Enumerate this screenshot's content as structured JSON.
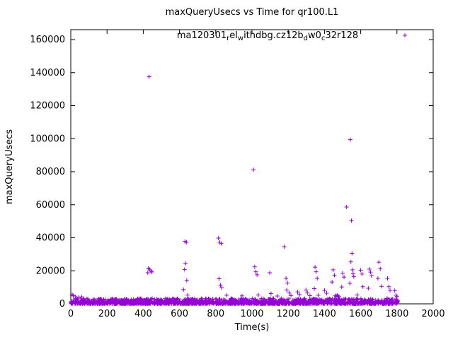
{
  "chart_data": {
    "type": "scatter",
    "title": "maxQueryUsecs vs Time for qr100.L1",
    "xlabel": "Time(s)",
    "ylabel": "maxQueryUsecs",
    "xlim": [
      0,
      2000
    ],
    "ylim": [
      0,
      166000
    ],
    "xticks": [
      0,
      200,
      400,
      600,
      800,
      1000,
      1200,
      1400,
      1600,
      1800,
      2000
    ],
    "yticks": [
      0,
      20000,
      40000,
      60000,
      80000,
      100000,
      120000,
      140000,
      160000
    ],
    "grid": false,
    "marker": "plus",
    "color": "#9400D3",
    "legend": {
      "position": "top-center-inside",
      "label_plain": "ma120301_rel_withdbg.cz12b_dw0_c32r128",
      "segments": [
        {
          "t": "ma120301",
          "sub": false
        },
        {
          "t": "r",
          "sub": true
        },
        {
          "t": "el",
          "sub": false
        },
        {
          "t": "w",
          "sub": true
        },
        {
          "t": "ithdbg.cz12b",
          "sub": false
        },
        {
          "t": "d",
          "sub": true
        },
        {
          "t": "w0",
          "sub": false
        },
        {
          "t": "c",
          "sub": true
        },
        {
          "t": "32r128",
          "sub": false
        }
      ]
    },
    "outliers": [
      [
        8,
        5600
      ],
      [
        14,
        4900
      ],
      [
        26,
        4300
      ],
      [
        45,
        3900
      ],
      [
        60,
        4200
      ],
      [
        432,
        137500
      ],
      [
        425,
        18800
      ],
      [
        428,
        21500
      ],
      [
        436,
        20900
      ],
      [
        442,
        19800
      ],
      [
        448,
        19300
      ],
      [
        622,
        8600
      ],
      [
        628,
        20800
      ],
      [
        630,
        37800
      ],
      [
        633,
        24500
      ],
      [
        638,
        37200
      ],
      [
        640,
        14200
      ],
      [
        645,
        5300
      ],
      [
        815,
        39800
      ],
      [
        818,
        15200
      ],
      [
        822,
        37300
      ],
      [
        826,
        11400
      ],
      [
        830,
        36500
      ],
      [
        833,
        9800
      ],
      [
        860,
        5200
      ],
      [
        945,
        4800
      ],
      [
        1008,
        81200
      ],
      [
        1015,
        22400
      ],
      [
        1022,
        19400
      ],
      [
        1028,
        17600
      ],
      [
        1035,
        5400
      ],
      [
        1098,
        18800
      ],
      [
        1105,
        6200
      ],
      [
        1140,
        4700
      ],
      [
        1178,
        34600
      ],
      [
        1188,
        15400
      ],
      [
        1192,
        8400
      ],
      [
        1196,
        12600
      ],
      [
        1205,
        6600
      ],
      [
        1215,
        5000
      ],
      [
        1252,
        7200
      ],
      [
        1262,
        5600
      ],
      [
        1298,
        8400
      ],
      [
        1306,
        6600
      ],
      [
        1320,
        4900
      ],
      [
        1344,
        9200
      ],
      [
        1348,
        22200
      ],
      [
        1354,
        19400
      ],
      [
        1360,
        15400
      ],
      [
        1366,
        5200
      ],
      [
        1400,
        8200
      ],
      [
        1412,
        6400
      ],
      [
        1442,
        13200
      ],
      [
        1448,
        20600
      ],
      [
        1455,
        17400
      ],
      [
        1460,
        5000
      ],
      [
        1465,
        4600
      ],
      [
        1470,
        5200
      ],
      [
        1475,
        4800
      ],
      [
        1480,
        4300
      ],
      [
        1495,
        10200
      ],
      [
        1500,
        18600
      ],
      [
        1508,
        16200
      ],
      [
        1522,
        58600
      ],
      [
        1540,
        12400
      ],
      [
        1543,
        99400
      ],
      [
        1546,
        25400
      ],
      [
        1549,
        50400
      ],
      [
        1552,
        30600
      ],
      [
        1555,
        20600
      ],
      [
        1558,
        18200
      ],
      [
        1562,
        16400
      ],
      [
        1580,
        5400
      ],
      [
        1600,
        20400
      ],
      [
        1607,
        18000
      ],
      [
        1612,
        10400
      ],
      [
        1642,
        9400
      ],
      [
        1648,
        21000
      ],
      [
        1654,
        19200
      ],
      [
        1660,
        17000
      ],
      [
        1695,
        15400
      ],
      [
        1700,
        25200
      ],
      [
        1708,
        21200
      ],
      [
        1715,
        10600
      ],
      [
        1748,
        15400
      ],
      [
        1756,
        10400
      ],
      [
        1762,
        8200
      ],
      [
        1788,
        8000
      ],
      [
        1795,
        5200
      ],
      [
        1800,
        4400
      ]
    ],
    "noise_band": {
      "description": "dense baseline of samples between ~0 and ~3000 usecs across the full run (0-1805s)",
      "seed": 1337,
      "count": 1600,
      "x_min": 0,
      "x_max": 1805,
      "y_min": 80,
      "y_max": 3200,
      "low_bias_exponent": 2.0
    }
  }
}
